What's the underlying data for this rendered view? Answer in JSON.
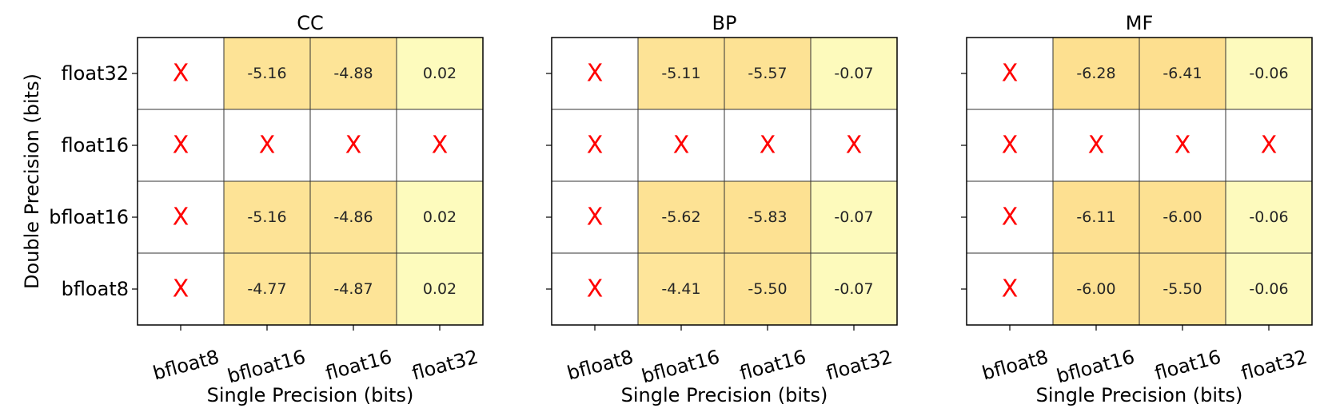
{
  "chart_data": {
    "type": "heatmap",
    "shared": {
      "xlabel": "Single Precision (bits)",
      "ylabel": "Double Precision (bits)",
      "x_categories": [
        "bfloat8",
        "bfloat16",
        "float16",
        "float32"
      ],
      "y_categories": [
        "float32",
        "float16",
        "bfloat16",
        "bfloat8"
      ],
      "missing_marker": "X",
      "colors": {
        "na": "#ffffff",
        "cell_border": "#333333",
        "frame": "#000000",
        "x_mark": "#ff0000",
        "scale_low": "#fddf8f",
        "scale_mid": "#fee9a0",
        "scale_high": "#fdfbbe"
      },
      "color_range": [
        -6.5,
        0.1
      ]
    },
    "panels": [
      {
        "title": "CC",
        "values": [
          [
            null,
            -5.16,
            -4.88,
            0.02
          ],
          [
            null,
            null,
            null,
            null
          ],
          [
            null,
            -5.16,
            -4.86,
            0.02
          ],
          [
            null,
            -4.77,
            -4.87,
            0.02
          ]
        ],
        "labels": [
          [
            "X",
            "-5.16",
            "-4.88",
            "0.02"
          ],
          [
            "X",
            "X",
            "X",
            "X"
          ],
          [
            "X",
            "-5.16",
            "-4.86",
            "0.02"
          ],
          [
            "X",
            "-4.77",
            "-4.87",
            "0.02"
          ]
        ]
      },
      {
        "title": "BP",
        "values": [
          [
            null,
            -5.11,
            -5.57,
            -0.07
          ],
          [
            null,
            null,
            null,
            null
          ],
          [
            null,
            -5.62,
            -5.83,
            -0.07
          ],
          [
            null,
            -4.41,
            -5.5,
            -0.07
          ]
        ],
        "labels": [
          [
            "X",
            "-5.11",
            "-5.57",
            "-0.07"
          ],
          [
            "X",
            "X",
            "X",
            "X"
          ],
          [
            "X",
            "-5.62",
            "-5.83",
            "-0.07"
          ],
          [
            "X",
            "-4.41",
            "-5.50",
            "-0.07"
          ]
        ]
      },
      {
        "title": "MF",
        "values": [
          [
            null,
            -6.28,
            -6.41,
            -0.06
          ],
          [
            null,
            null,
            null,
            null
          ],
          [
            null,
            -6.11,
            -6.0,
            -0.06
          ],
          [
            null,
            -6.0,
            -5.5,
            -0.06
          ]
        ],
        "labels": [
          [
            "X",
            "-6.28",
            "-6.41",
            "-0.06"
          ],
          [
            "X",
            "X",
            "X",
            "X"
          ],
          [
            "X",
            "-6.11",
            "-6.00",
            "-0.06"
          ],
          [
            "X",
            "-6.00",
            "-5.50",
            "-0.06"
          ]
        ]
      }
    ]
  }
}
